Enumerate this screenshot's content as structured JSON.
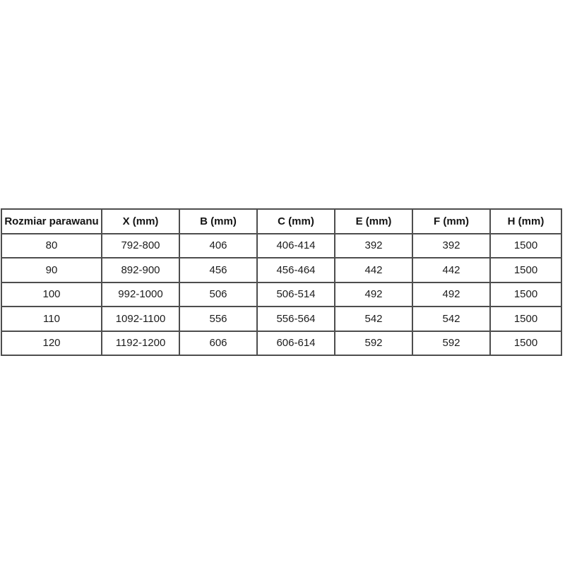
{
  "chart_data": {
    "type": "table",
    "columns": [
      "Rozmiar parawanu",
      "X (mm)",
      "B (mm)",
      "C (mm)",
      "E (mm)",
      "F (mm)",
      "H (mm)"
    ],
    "rows": [
      [
        "80",
        "792-800",
        "406",
        "406-414",
        "392",
        "392",
        "1500"
      ],
      [
        "90",
        "892-900",
        "456",
        "456-464",
        "442",
        "442",
        "1500"
      ],
      [
        "100",
        "992-1000",
        "506",
        "506-514",
        "492",
        "492",
        "1500"
      ],
      [
        "110",
        "1092-1100",
        "556",
        "556-564",
        "542",
        "542",
        "1500"
      ],
      [
        "120",
        "1192-1200",
        "606",
        "606-614",
        "592",
        "592",
        "1500"
      ]
    ],
    "layout": {
      "grid": "on",
      "header_style": "bold",
      "alignment": "center"
    }
  },
  "colors": {
    "border": "#4d4d4d",
    "text": "#1c1c1c",
    "background": "#ffffff"
  }
}
